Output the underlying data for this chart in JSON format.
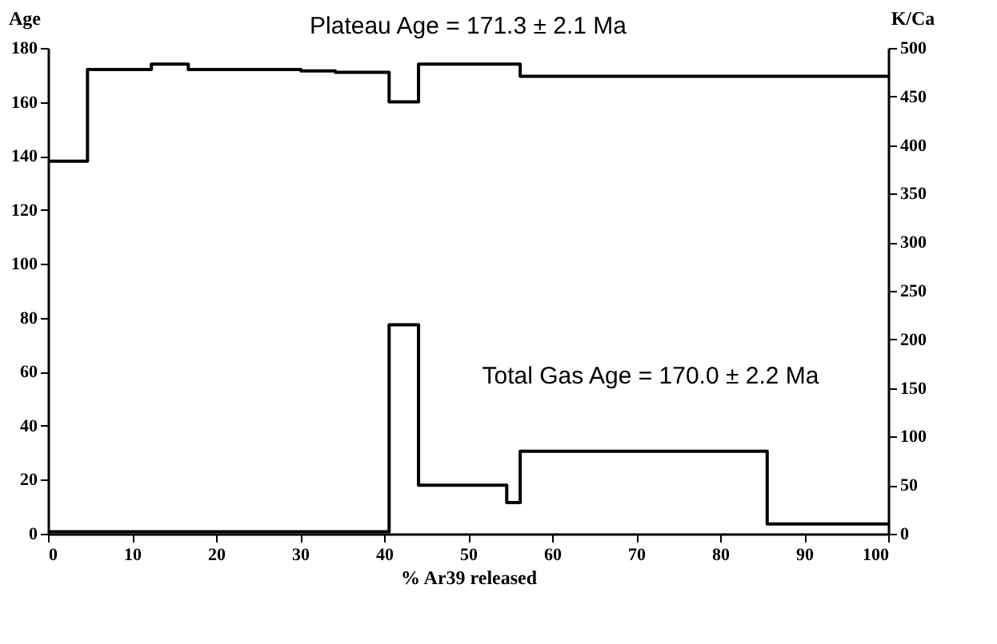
{
  "chart_data": {
    "type": "step",
    "xlabel": "% Ar39 released",
    "ylabel": "Age",
    "y2label": "K/Ca",
    "annotations": [
      "Plateau Age = 171.3 ± 2.1 Ma",
      "Total Gas Age = 170.0 ± 2.2 Ma"
    ],
    "xlim": [
      0,
      100
    ],
    "xticks": [
      0,
      10,
      20,
      30,
      40,
      50,
      60,
      70,
      80,
      90,
      100
    ],
    "ylim": [
      0,
      180
    ],
    "yticks": [
      0,
      20,
      40,
      60,
      80,
      100,
      120,
      140,
      160,
      180
    ],
    "y2lim": [
      0,
      500
    ],
    "y2ticks": [
      0,
      50,
      100,
      150,
      200,
      250,
      300,
      350,
      400,
      450,
      500
    ],
    "grid": false,
    "series": [
      {
        "color": "#000000",
        "x": [
          0,
          4.7,
          12.3,
          16.7,
          30.1,
          34.2,
          40.6,
          44.1,
          56.2,
          100
        ],
        "values": [
          138,
          172,
          174,
          172,
          171.5,
          171,
          160,
          174,
          169.5,
          169.5
        ]
      },
      {
        "color": "#000000",
        "axis": "y2",
        "x": [
          0,
          40.6,
          44.1,
          54.6,
          56.2,
          85.6,
          100
        ],
        "values": [
          2,
          215,
          50,
          32,
          85,
          10,
          10
        ]
      }
    ]
  }
}
